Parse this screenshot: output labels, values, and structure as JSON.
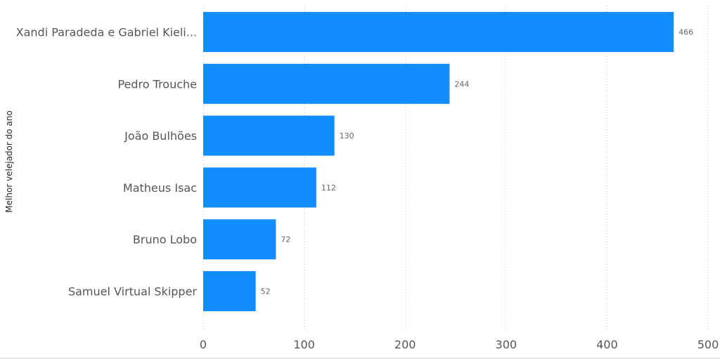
{
  "chart_data": {
    "type": "bar",
    "orientation": "horizontal",
    "categories": [
      "Xandi Paradeda e Gabriel Kieli...",
      "Pedro Trouche",
      "João Bulhões",
      "Matheus Isac",
      "Bruno Lobo",
      "Samuel Virtual Skipper"
    ],
    "values": [
      466,
      244,
      130,
      112,
      72,
      52
    ],
    "data_labels": [
      "466",
      "244",
      "130",
      "112",
      "72",
      "52"
    ],
    "title": "",
    "xlabel": "",
    "ylabel": "Melhor velejador do ano",
    "xlim": [
      0,
      500
    ],
    "x_ticks": [
      0,
      100,
      200,
      300,
      400,
      500
    ],
    "x_tick_labels": [
      "0",
      "100",
      "200",
      "300",
      "400",
      "500"
    ],
    "grid": "vertical dotted",
    "legend": "none",
    "bar_color": "#118DFF"
  }
}
